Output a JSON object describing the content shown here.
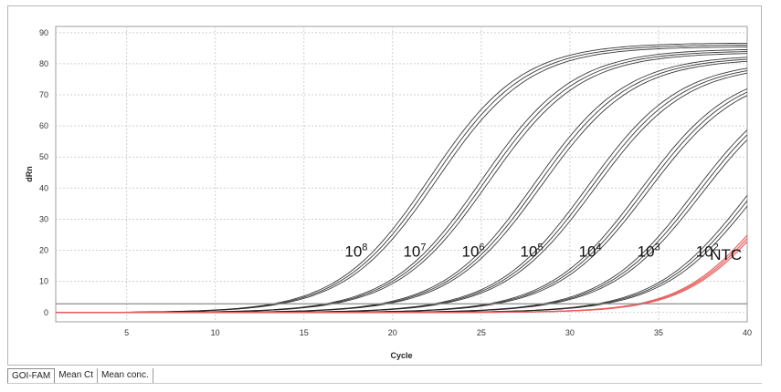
{
  "chart_data": {
    "type": "line",
    "xlabel": "Cycle",
    "ylabel": "dRn",
    "xlim": [
      1,
      40
    ],
    "ylim": [
      -3,
      92
    ],
    "xticks": [
      5,
      10,
      15,
      20,
      25,
      30,
      35,
      40
    ],
    "yticks": [
      0,
      10,
      20,
      30,
      40,
      50,
      60,
      70,
      80,
      90
    ],
    "grid": true,
    "threshold": 2.8,
    "concentration_labels": [
      {
        "base": "10",
        "exp": "8",
        "x": 17.3,
        "y": 18
      },
      {
        "base": "10",
        "exp": "7",
        "x": 20.6,
        "y": 18
      },
      {
        "base": "10",
        "exp": "6",
        "x": 23.9,
        "y": 18
      },
      {
        "base": "10",
        "exp": "5",
        "x": 27.2,
        "y": 18
      },
      {
        "base": "10",
        "exp": "4",
        "x": 30.5,
        "y": 18
      },
      {
        "base": "10",
        "exp": "3",
        "x": 33.8,
        "y": 18
      },
      {
        "base": "10",
        "exp": "2",
        "x": 37.1,
        "y": 18
      },
      {
        "base": "NTC",
        "exp": "",
        "x": 37.9,
        "y": 17
      }
    ],
    "series": [
      {
        "color": "#222222",
        "curves": [
          [
            86.7,
            22.1,
            2.6
          ],
          [
            86.1,
            22.3,
            2.6
          ],
          [
            85.5,
            22.5,
            2.6
          ]
        ]
      },
      {
        "color": "#222222",
        "curves": [
          [
            84.8,
            25.0,
            2.6
          ],
          [
            84.2,
            25.2,
            2.6
          ],
          [
            83.6,
            25.4,
            2.6
          ]
        ]
      },
      {
        "color": "#222222",
        "curves": [
          [
            82.9,
            28.0,
            2.6
          ],
          [
            82.3,
            28.2,
            2.6
          ],
          [
            81.7,
            28.4,
            2.6
          ]
        ]
      },
      {
        "color": "#222222",
        "curves": [
          [
            81.0,
            31.0,
            2.6
          ],
          [
            80.4,
            31.2,
            2.6
          ],
          [
            79.8,
            31.4,
            2.6
          ]
        ]
      },
      {
        "color": "#222222",
        "curves": [
          [
            79.1,
            34.0,
            2.6
          ],
          [
            78.5,
            34.2,
            2.6
          ],
          [
            77.9,
            34.4,
            2.6
          ]
        ]
      },
      {
        "color": "#222222",
        "curves": [
          [
            77.2,
            37.0,
            2.6
          ],
          [
            76.6,
            37.2,
            2.6
          ],
          [
            76.0,
            37.4,
            2.6
          ]
        ]
      },
      {
        "color": "#222222",
        "curves": [
          [
            75.3,
            40.0,
            2.6
          ],
          [
            74.7,
            40.2,
            2.6
          ],
          [
            74.1,
            40.4,
            2.6
          ]
        ]
      },
      {
        "color": "#e85a5a",
        "curves": [
          [
            60,
            40.8,
            2.3
          ],
          [
            59,
            40.9,
            2.3
          ],
          [
            58,
            41.0,
            2.3
          ]
        ]
      }
    ]
  },
  "tabs": [
    {
      "label": "GOI-FAM",
      "active": true
    },
    {
      "label": "Mean Ct",
      "active": false
    },
    {
      "label": "Mean conc.",
      "active": false
    }
  ],
  "colors": {
    "grid": "#cfcfcf",
    "threshold": "#8c8c8c",
    "curve": "#222222",
    "ntc": "#e85a5a"
  }
}
